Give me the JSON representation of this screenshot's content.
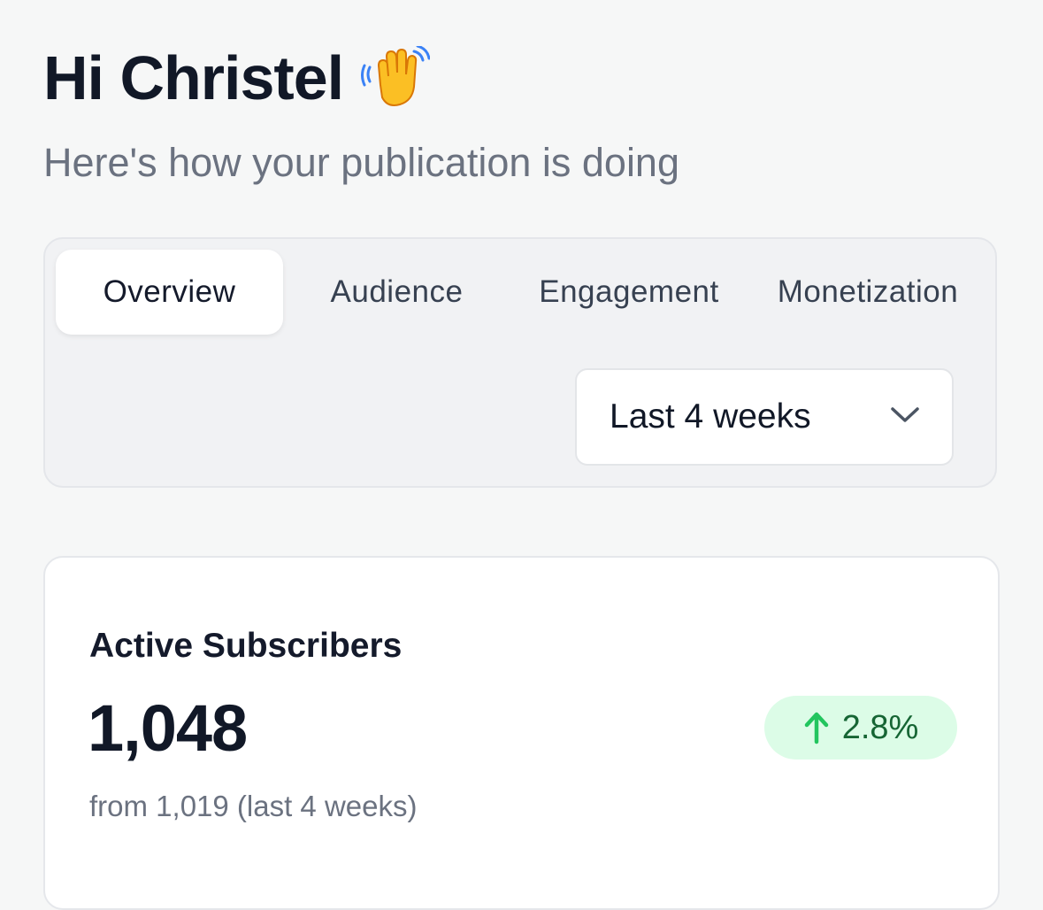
{
  "header": {
    "greeting": "Hi Christel",
    "greeting_icon": "waving-hand-icon",
    "subtitle": "Here's how your publication is doing"
  },
  "tabs": [
    {
      "label": "Overview",
      "active": true
    },
    {
      "label": "Audience",
      "active": false
    },
    {
      "label": "Engagement",
      "active": false
    },
    {
      "label": "Monetization",
      "active": false
    }
  ],
  "range_select": {
    "selected": "Last 4 weeks",
    "icon": "chevron-down-icon"
  },
  "stat_card": {
    "label": "Active Subscribers",
    "value": "1,048",
    "change": "2.8%",
    "change_direction_icon": "arrow-up-icon",
    "footnote": "from 1,019 (last 4 weeks)"
  },
  "colors": {
    "background": "#f6f7f7",
    "positive_badge_bg": "#dcfce7",
    "positive_text": "#166534",
    "positive_icon": "#22c55e"
  }
}
